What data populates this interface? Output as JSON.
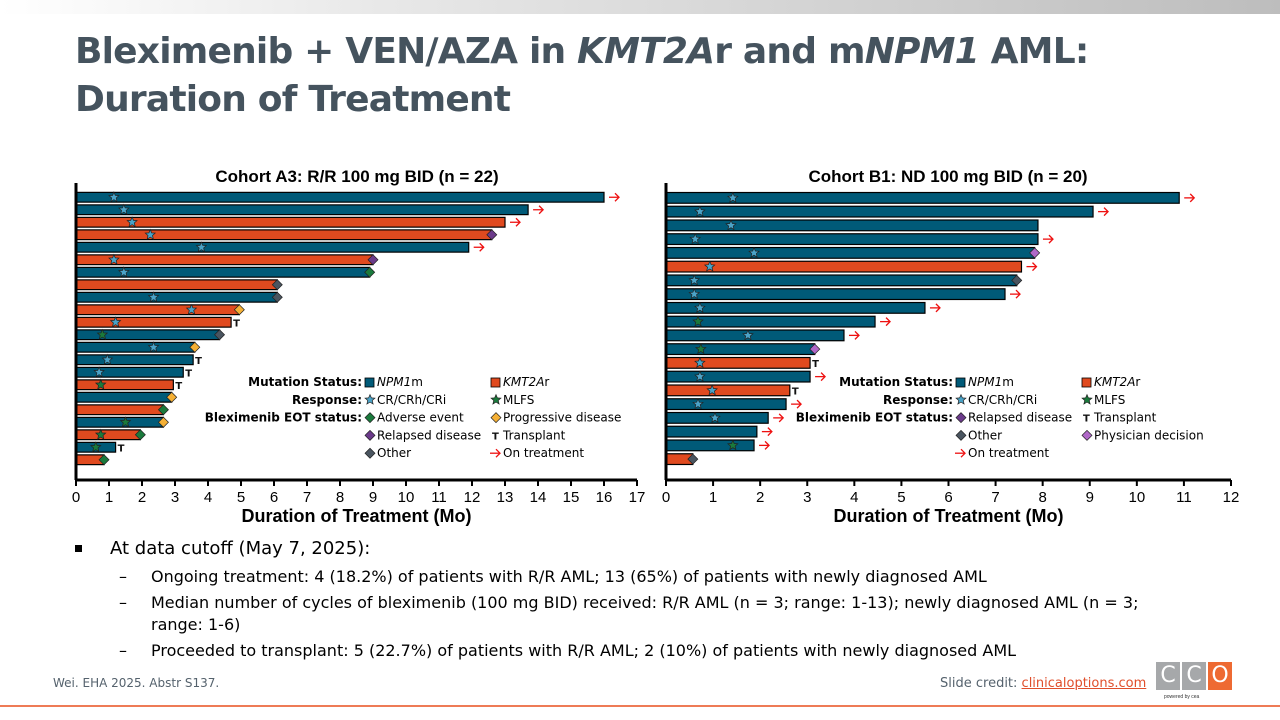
{
  "slide": {
    "title_line1_parts": [
      "Bleximenib + VEN/AZA in ",
      "KMT2A",
      "r and m",
      "NPM1",
      " AML:"
    ],
    "title_line2": "Duration of Treatment",
    "bullet": "At data cutoff (May 7, 2025):",
    "sub_bullets": [
      "Ongoing treatment: 4 (18.2%) of patients with R/R AML; 13 (65%) of patients with newly diagnosed AML",
      "Median number of cycles of bleximenib (100 mg BID) received: R/R AML (n = 3; range: 1-13); newly diagnosed AML (n = 3; range: 1-6)",
      "Proceeded to transplant: 5 (22.7%) of patients with R/R AML; 2 (10%) of patients with newly diagnosed AML"
    ],
    "dash": "–",
    "reference": "Wei. EHA 2025. Abstr S137.",
    "credit_label": "Slide credit: ",
    "credit_link": "clinicaloptions.com",
    "logo_letters": [
      "C",
      "C",
      "O"
    ],
    "logo_tagline": "powered by cea"
  },
  "colors": {
    "npm1": "#005a78",
    "kmt2a": "#e04a1f",
    "cr": "#4aa3c8",
    "mlfs": "#1a7a3c",
    "adverse": "#1a7a3c",
    "progressive": "#f5b035",
    "relapsed": "#6b3a8a",
    "other": "#4a5560",
    "physician": "#b068c8",
    "arrow": "#ee1111",
    "title": "#45535e",
    "accent": "#ee7b56"
  },
  "chart_data": [
    {
      "type": "bar",
      "orientation": "horizontal (swimmer plot)",
      "title": "Cohort A3: R/R 100 mg BID (n = 22)",
      "xlabel": "Duration of Treatment (Mo)",
      "xlim": [
        0,
        17
      ],
      "xticks": [
        0,
        1,
        2,
        3,
        4,
        5,
        6,
        7,
        8,
        9,
        10,
        11,
        12,
        13,
        14,
        15,
        16,
        17
      ],
      "legend_placement": "bottom-right",
      "legend": {
        "mutation_label": "Mutation Status:",
        "response_label": "Response:",
        "eot_label": "Bleximenib EOT status:",
        "items": [
          {
            "row": 0,
            "col": 0,
            "kind": "box",
            "key": "npm1",
            "label": "NPM1m",
            "italic": "NPM1",
            "suffix": "m"
          },
          {
            "row": 0,
            "col": 1,
            "kind": "box",
            "key": "kmt2a",
            "label": "KMT2Ar",
            "italic": "KMT2A",
            "suffix": "r"
          },
          {
            "row": 1,
            "col": 0,
            "kind": "star",
            "key": "cr",
            "label": "CR/CRh/CRi"
          },
          {
            "row": 1,
            "col": 1,
            "kind": "star",
            "key": "mlfs",
            "label": "MLFS"
          },
          {
            "row": 2,
            "col": 0,
            "kind": "diamond",
            "key": "adverse",
            "label": "Adverse event"
          },
          {
            "row": 2,
            "col": 1,
            "kind": "diamond",
            "key": "progressive",
            "label": "Progressive disease"
          },
          {
            "row": 3,
            "col": 0,
            "kind": "diamond",
            "key": "relapsed",
            "label": "Relapsed disease"
          },
          {
            "row": 3,
            "col": 1,
            "kind": "T",
            "key": "transplant",
            "label": "Transplant"
          },
          {
            "row": 4,
            "col": 0,
            "kind": "diamond",
            "key": "other",
            "label": "Other"
          },
          {
            "row": 4,
            "col": 1,
            "kind": "arrow",
            "key": "arrow",
            "label": "On treatment"
          }
        ]
      },
      "patients": [
        {
          "mutation": "npm1",
          "duration": 16.0,
          "response": "cr",
          "response_month": 1.15,
          "eot": "on_treatment"
        },
        {
          "mutation": "npm1",
          "duration": 13.7,
          "response": "cr",
          "response_month": 1.45,
          "eot": "on_treatment"
        },
        {
          "mutation": "kmt2a",
          "duration": 13.0,
          "response": "cr",
          "response_month": 1.7,
          "eot": "on_treatment"
        },
        {
          "mutation": "kmt2a",
          "duration": 12.6,
          "response": "cr",
          "response_month": 2.25,
          "eot": "relapsed"
        },
        {
          "mutation": "npm1",
          "duration": 11.9,
          "response": "cr",
          "response_month": 3.8,
          "eot": "on_treatment"
        },
        {
          "mutation": "kmt2a",
          "duration": 9.0,
          "response": "cr",
          "response_month": 1.15,
          "eot": "relapsed"
        },
        {
          "mutation": "npm1",
          "duration": 8.9,
          "response": "cr",
          "response_month": 1.45,
          "eot": "adverse"
        },
        {
          "mutation": "kmt2a",
          "duration": 6.1,
          "response": null,
          "response_month": null,
          "eot": "other"
        },
        {
          "mutation": "npm1",
          "duration": 6.1,
          "response": "cr",
          "response_month": 2.35,
          "eot": "other"
        },
        {
          "mutation": "kmt2a",
          "duration": 4.95,
          "response": "cr",
          "response_month": 3.5,
          "eot": "progressive"
        },
        {
          "mutation": "kmt2a",
          "duration": 4.7,
          "response": "cr",
          "response_month": 1.2,
          "eot": "transplant"
        },
        {
          "mutation": "npm1",
          "duration": 4.35,
          "response": "mlfs",
          "response_month": 0.8,
          "eot": "other"
        },
        {
          "mutation": "npm1",
          "duration": 3.6,
          "response": "cr",
          "response_month": 2.35,
          "eot": "progressive"
        },
        {
          "mutation": "npm1",
          "duration": 3.55,
          "response": "cr",
          "response_month": 0.95,
          "eot": "transplant"
        },
        {
          "mutation": "npm1",
          "duration": 3.25,
          "response": "cr",
          "response_month": 0.7,
          "eot": "transplant"
        },
        {
          "mutation": "kmt2a",
          "duration": 2.95,
          "response": "mlfs",
          "response_month": 0.75,
          "eot": "transplant"
        },
        {
          "mutation": "npm1",
          "duration": 2.9,
          "response": null,
          "response_month": null,
          "eot": "progressive"
        },
        {
          "mutation": "kmt2a",
          "duration": 2.65,
          "response": null,
          "response_month": null,
          "eot": "adverse"
        },
        {
          "mutation": "npm1",
          "duration": 2.65,
          "response": "mlfs",
          "response_month": 1.5,
          "eot": "progressive"
        },
        {
          "mutation": "kmt2a",
          "duration": 1.95,
          "response": "mlfs",
          "response_month": 0.75,
          "eot": "adverse"
        },
        {
          "mutation": "npm1",
          "duration": 1.2,
          "response": "mlfs",
          "response_month": 0.6,
          "eot": "transplant"
        },
        {
          "mutation": "kmt2a",
          "duration": 0.85,
          "response": null,
          "response_month": null,
          "eot": "adverse"
        }
      ]
    },
    {
      "type": "bar",
      "orientation": "horizontal (swimmer plot)",
      "title": "Cohort B1: ND 100 mg BID (n = 20)",
      "xlabel": "Duration of Treatment (Mo)",
      "xlim": [
        0,
        12
      ],
      "xticks": [
        0,
        1,
        2,
        3,
        4,
        5,
        6,
        7,
        8,
        9,
        10,
        11,
        12
      ],
      "legend_placement": "bottom-right",
      "legend": {
        "mutation_label": "Mutation Status:",
        "response_label": "Response:",
        "eot_label": "Bleximenib EOT status:",
        "items": [
          {
            "row": 0,
            "col": 0,
            "kind": "box",
            "key": "npm1",
            "label": "NPM1m",
            "italic": "NPM1",
            "suffix": "m"
          },
          {
            "row": 0,
            "col": 1,
            "kind": "box",
            "key": "kmt2a",
            "label": "KMT2Ar",
            "italic": "KMT2A",
            "suffix": "r"
          },
          {
            "row": 1,
            "col": 0,
            "kind": "star",
            "key": "cr",
            "label": "CR/CRh/CRi"
          },
          {
            "row": 1,
            "col": 1,
            "kind": "star",
            "key": "mlfs",
            "label": "MLFS"
          },
          {
            "row": 2,
            "col": 0,
            "kind": "diamond",
            "key": "relapsed",
            "label": "Relapsed disease"
          },
          {
            "row": 2,
            "col": 1,
            "kind": "T",
            "key": "transplant",
            "label": "Transplant"
          },
          {
            "row": 3,
            "col": 0,
            "kind": "diamond",
            "key": "other",
            "label": "Other"
          },
          {
            "row": 3,
            "col": 1,
            "kind": "diamond",
            "key": "physician",
            "label": "Physician decision"
          },
          {
            "row": 4,
            "col": 0,
            "kind": "arrow",
            "key": "arrow",
            "label": "On treatment"
          }
        ]
      },
      "patients": [
        {
          "mutation": "npm1",
          "duration": 10.9,
          "response": "cr",
          "response_month": 1.42,
          "eot": "on_treatment"
        },
        {
          "mutation": "npm1",
          "duration": 9.07,
          "response": "cr",
          "response_month": 0.72,
          "eot": "on_treatment"
        },
        {
          "mutation": "npm1",
          "duration": 7.9,
          "response": "cr",
          "response_month": 1.38,
          "eot": null
        },
        {
          "mutation": "npm1",
          "duration": 7.9,
          "response": "cr",
          "response_month": 0.62,
          "eot": "on_treatment"
        },
        {
          "mutation": "npm1",
          "duration": 7.83,
          "response": "cr",
          "response_month": 1.87,
          "eot": "physician"
        },
        {
          "mutation": "kmt2a",
          "duration": 7.55,
          "response": "cr",
          "response_month": 0.93,
          "eot": "on_treatment"
        },
        {
          "mutation": "npm1",
          "duration": 7.45,
          "response": "cr",
          "response_month": 0.6,
          "eot": "other"
        },
        {
          "mutation": "npm1",
          "duration": 7.2,
          "response": "cr",
          "response_month": 0.6,
          "eot": "on_treatment"
        },
        {
          "mutation": "npm1",
          "duration": 5.5,
          "response": "cr",
          "response_month": 0.72,
          "eot": "on_treatment"
        },
        {
          "mutation": "npm1",
          "duration": 4.44,
          "response": "mlfs",
          "response_month": 0.68,
          "eot": "on_treatment"
        },
        {
          "mutation": "npm1",
          "duration": 3.78,
          "response": "cr",
          "response_month": 1.74,
          "eot": "on_treatment"
        },
        {
          "mutation": "npm1",
          "duration": 3.16,
          "response": "mlfs",
          "response_month": 0.74,
          "eot": "physician"
        },
        {
          "mutation": "kmt2a",
          "duration": 3.06,
          "response": "cr",
          "response_month": 0.72,
          "eot": "transplant"
        },
        {
          "mutation": "npm1",
          "duration": 3.06,
          "response": "cr",
          "response_month": 0.72,
          "eot": "on_treatment"
        },
        {
          "mutation": "kmt2a",
          "duration": 2.63,
          "response": "cr",
          "response_month": 0.98,
          "eot": "transplant"
        },
        {
          "mutation": "npm1",
          "duration": 2.55,
          "response": "cr",
          "response_month": 0.68,
          "eot": "on_treatment"
        },
        {
          "mutation": "npm1",
          "duration": 2.17,
          "response": "cr",
          "response_month": 1.04,
          "eot": "on_treatment"
        },
        {
          "mutation": "npm1",
          "duration": 1.93,
          "response": null,
          "response_month": null,
          "eot": "on_treatment"
        },
        {
          "mutation": "npm1",
          "duration": 1.87,
          "response": "mlfs",
          "response_month": 1.42,
          "eot": "on_treatment"
        },
        {
          "mutation": "kmt2a",
          "duration": 0.57,
          "response": null,
          "response_month": null,
          "eot": "other"
        }
      ]
    }
  ]
}
